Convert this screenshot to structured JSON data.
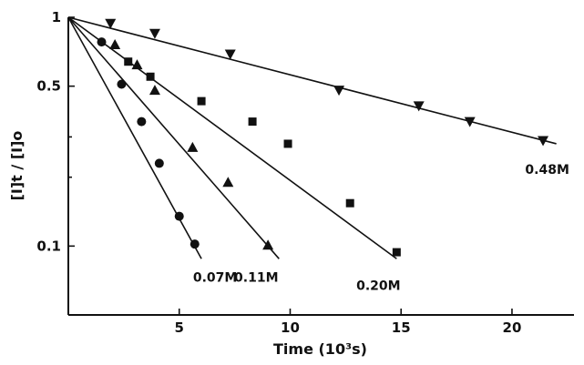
{
  "chart_data": {
    "type": "scatter",
    "title": "",
    "xlabel": "Time (10³s)",
    "ylabel": "[I]t / [I]o",
    "xlim": [
      0,
      23
    ],
    "ylim": [
      0.05,
      1
    ],
    "y_scale": "log",
    "grid": false,
    "x_ticks": [
      {
        "value": 5,
        "label": "5"
      },
      {
        "value": 10,
        "label": "10"
      },
      {
        "value": 15,
        "label": "15"
      },
      {
        "value": 20,
        "label": "20"
      }
    ],
    "y_ticks": [
      {
        "value": 1,
        "label": "1"
      },
      {
        "value": 0.5,
        "label": "0.5"
      },
      {
        "value": 0.1,
        "label": "0.1"
      }
    ],
    "y_minor_ticks": [
      0.2,
      0.3
    ],
    "series": [
      {
        "name": "0.07M",
        "marker": "circle",
        "x": [
          1.5,
          2.4,
          3.3,
          4.1,
          5.0,
          5.7
        ],
        "y": [
          0.78,
          0.51,
          0.35,
          0.23,
          0.135,
          0.102
        ],
        "fit_x": [
          0,
          6.0
        ],
        "fit_y": [
          1,
          0.088
        ]
      },
      {
        "name": "0.11M",
        "marker": "triangle-up",
        "x": [
          2.1,
          3.1,
          3.9,
          5.6,
          7.2,
          9.0
        ],
        "y": [
          0.76,
          0.62,
          0.48,
          0.27,
          0.19,
          0.101
        ],
        "fit_x": [
          0,
          9.5
        ],
        "fit_y": [
          1,
          0.088
        ]
      },
      {
        "name": "0.20M",
        "marker": "square",
        "x": [
          2.7,
          3.7,
          6.0,
          8.3,
          9.9,
          12.7,
          14.8
        ],
        "y": [
          0.64,
          0.55,
          0.43,
          0.35,
          0.28,
          0.154,
          0.094
        ],
        "fit_x": [
          0,
          14.8
        ],
        "fit_y": [
          1,
          0.088
        ]
      },
      {
        "name": "0.48M",
        "marker": "triangle-down",
        "x": [
          1.9,
          3.9,
          7.3,
          12.2,
          15.8,
          18.1,
          21.4
        ],
        "y": [
          0.94,
          0.85,
          0.69,
          0.48,
          0.41,
          0.35,
          0.289
        ],
        "fit_x": [
          0,
          22.0
        ],
        "fit_y": [
          1,
          0.28
        ]
      }
    ]
  }
}
